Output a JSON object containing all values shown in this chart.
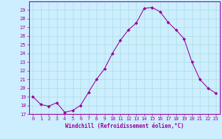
{
  "x": [
    0,
    1,
    2,
    3,
    4,
    5,
    6,
    7,
    8,
    9,
    10,
    11,
    12,
    13,
    14,
    15,
    16,
    17,
    18,
    19,
    20,
    21,
    22,
    23
  ],
  "y": [
    19.0,
    18.1,
    17.9,
    18.3,
    17.2,
    17.4,
    18.0,
    19.5,
    21.0,
    22.2,
    24.0,
    25.5,
    26.7,
    27.5,
    29.2,
    29.3,
    28.8,
    27.6,
    26.7,
    25.7,
    23.0,
    21.0,
    20.0,
    19.4
  ],
  "line_color": "#990099",
  "marker": "D",
  "marker_size": 2.0,
  "bg_color": "#cceeff",
  "grid_color": "#aadddd",
  "xlabel": "Windchill (Refroidissement éolien,°C)",
  "ylabel": "",
  "ylim": [
    17,
    30
  ],
  "xlim": [
    -0.5,
    23.5
  ],
  "yticks": [
    17,
    18,
    19,
    20,
    21,
    22,
    23,
    24,
    25,
    26,
    27,
    28,
    29
  ],
  "xticks": [
    0,
    1,
    2,
    3,
    4,
    5,
    6,
    7,
    8,
    9,
    10,
    11,
    12,
    13,
    14,
    15,
    16,
    17,
    18,
    19,
    20,
    21,
    22,
    23
  ],
  "tick_color": "#990099",
  "label_color": "#990099",
  "font_family": "monospace",
  "tick_fontsize": 5.0,
  "xlabel_fontsize": 5.5
}
